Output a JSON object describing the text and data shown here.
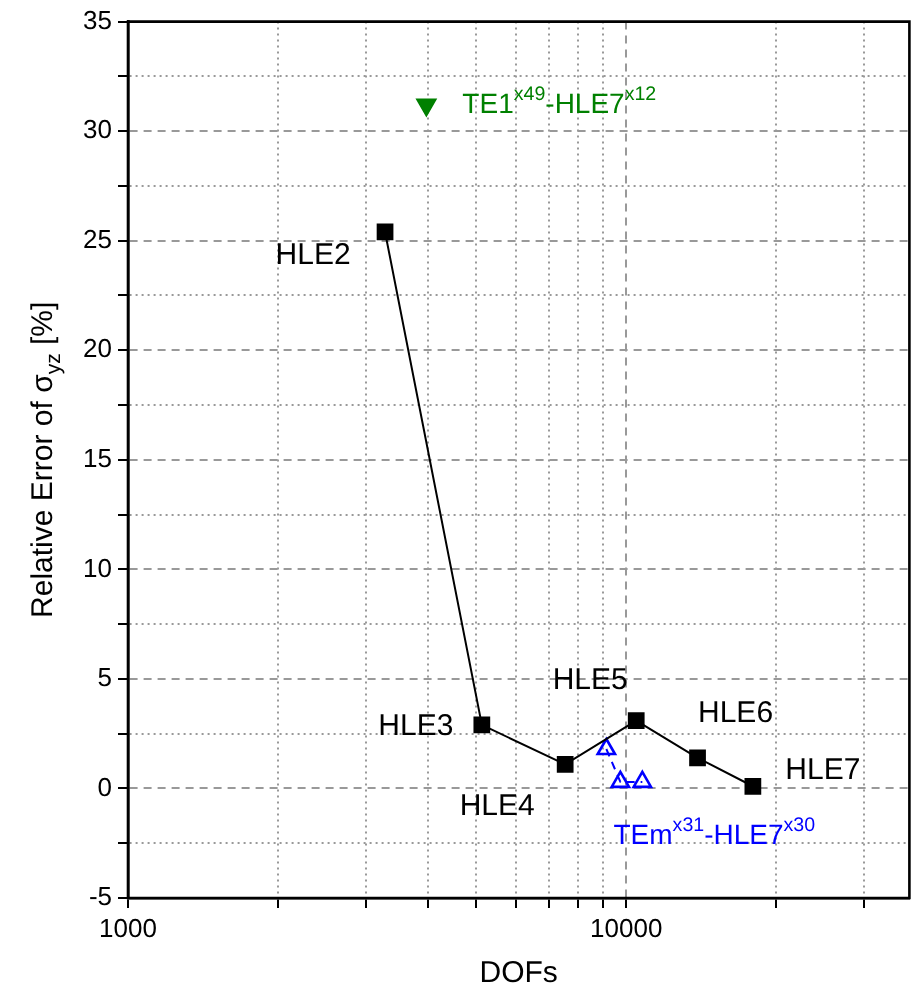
{
  "chart_data": {
    "type": "line",
    "xlabel": "DOFs",
    "ylabel": "Relative Error of σ$_{yz}$ [%]",
    "log": "x",
    "grid": true,
    "legend": false,
    "xlim": [
      1000,
      37000
    ],
    "xticks": [
      1000,
      {
        "value": 2000,
        "label": null
      },
      {
        "value": 3000,
        "label": null
      },
      {
        "value": 4000,
        "label": null
      },
      {
        "value": 5000,
        "label": null
      },
      {
        "value": 6000,
        "label": null
      },
      {
        "value": 7000,
        "label": null
      },
      {
        "value": 8000,
        "label": null
      },
      {
        "value": 9000,
        "label": null
      },
      10000,
      {
        "value": 20000,
        "label": null
      },
      {
        "value": 30000,
        "label": null
      }
    ],
    "ylim": [
      -5,
      35
    ],
    "yticks": [
      -5,
      {
        "value": -2.5,
        "label": null
      },
      0,
      {
        "value": 2.5,
        "label": null
      },
      5,
      {
        "value": 7.5,
        "label": null
      },
      10,
      {
        "value": 12.5,
        "label": null
      },
      15,
      {
        "value": 17.5,
        "label": null
      },
      20,
      {
        "value": 22.5,
        "label": null
      },
      25,
      {
        "value": 27.5,
        "label": null
      },
      30,
      {
        "value": 32.5,
        "label": null
      },
      35
    ],
    "series": [
      {
        "color": "#000000",
        "marker": "square",
        "line_style": "solid",
        "x": [
          3280,
          5130,
          7540,
          10470,
          13900,
          17950
        ],
        "values": [
          25.4,
          2.9,
          1.1,
          3.1,
          1.4,
          0.1
        ]
      },
      {
        "type": "line",
        "name": "TEm$^{x31}$-HLE7$^{x30}$",
        "color": "#0000ff",
        "marker": "triangle",
        "line_style": "dashed",
        "x": [
          9120,
          9730,
          10770
        ],
        "values": [
          1.8,
          0.3,
          0.3
        ]
      },
      {
        "type": "scatter",
        "name": "TE1$^{x49}$-HLE7$^{x12}$",
        "color": "#008000",
        "marker": "triangle_down",
        "x": [
          3970
        ],
        "values": [
          31.2
        ]
      }
    ],
    "annotations": [
      {
        "text": "HLE2",
        "x": 3280,
        "y": 25.4
      },
      {
        "text": "HLE3",
        "x": 5130,
        "y": 2.9
      },
      {
        "text": "HLE4",
        "x": 7540,
        "y": 1.1
      },
      {
        "text": "HLE5",
        "x": 10470,
        "y": 3.1
      },
      {
        "text": "HLE6",
        "x": 13900,
        "y": 1.4
      },
      {
        "text": "HLE7",
        "x": 17950,
        "y": 0.1
      }
    ]
  }
}
